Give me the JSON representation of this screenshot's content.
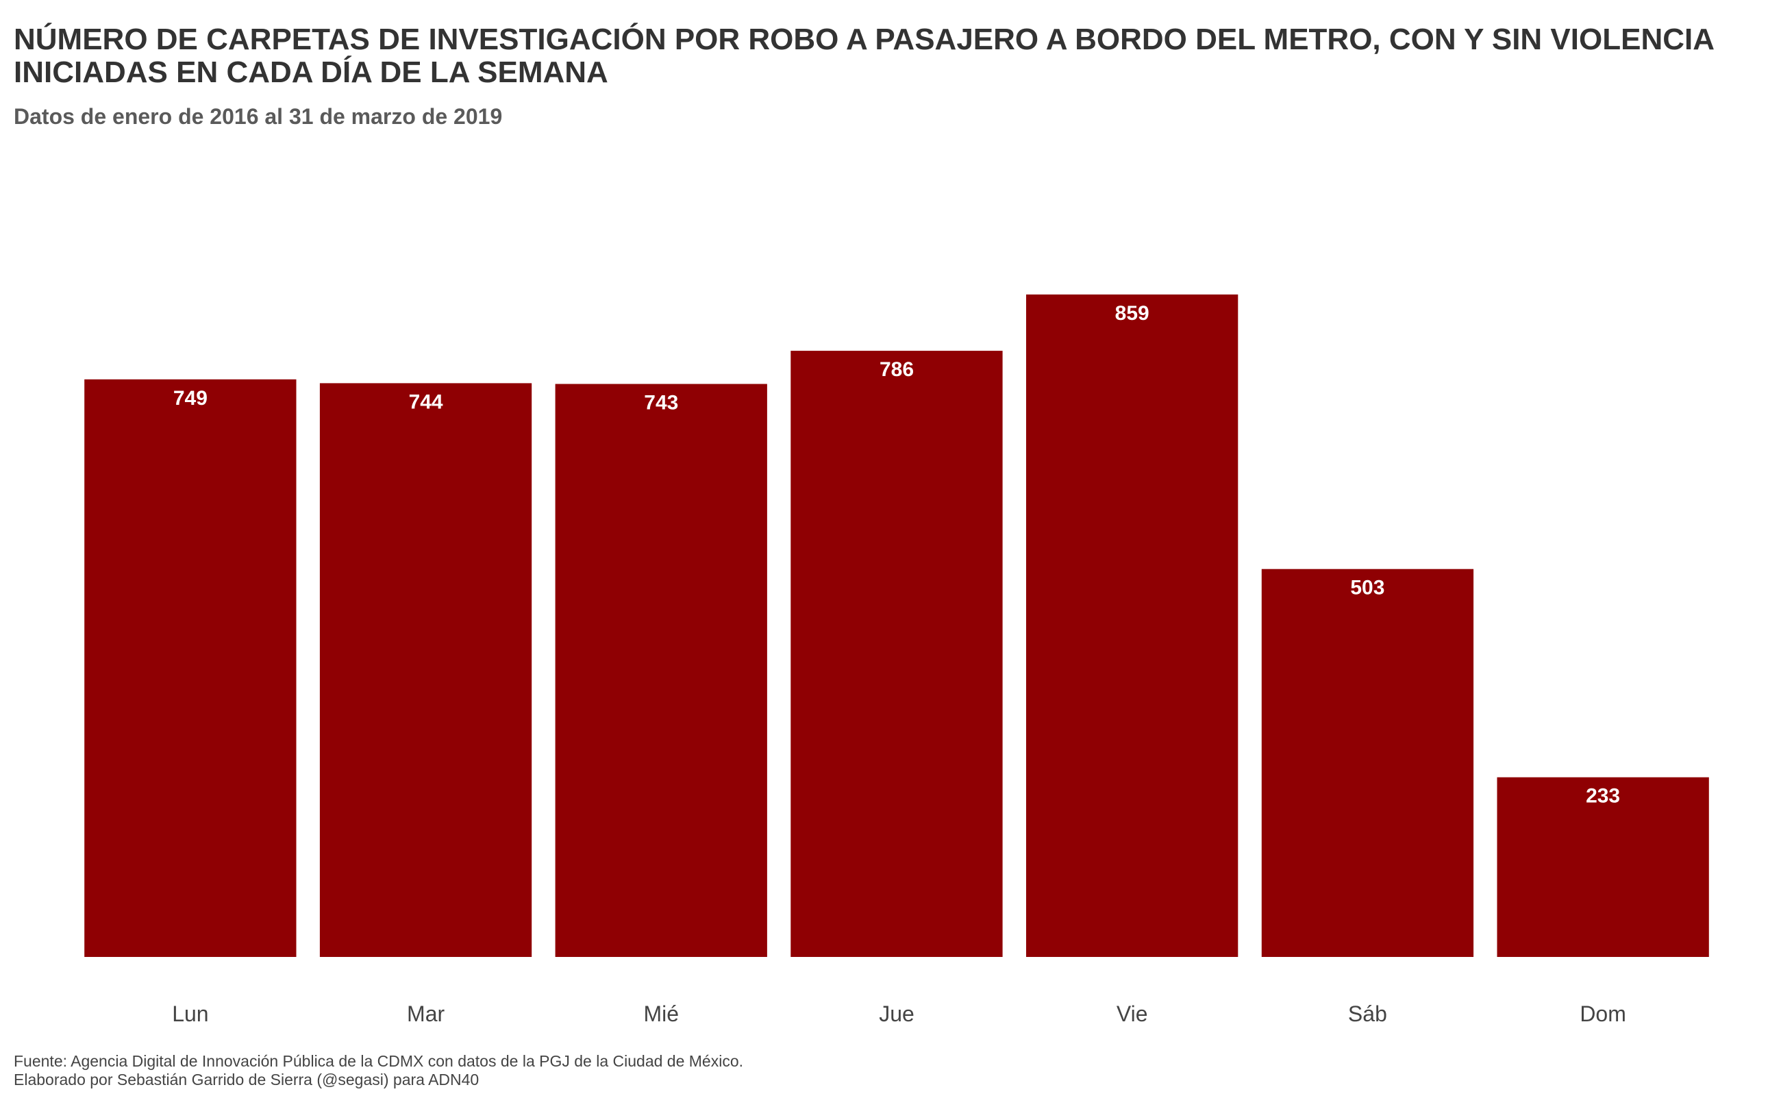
{
  "chart_data": {
    "type": "bar",
    "title": [
      "NÚMERO DE CARPETAS DE INVESTIGACIÓN POR ROBO A PASAJERO A BORDO DEL METRO, CON Y SIN VIOLENCIA",
      "INICIADAS EN CADA DÍA DE LA SEMANA"
    ],
    "subtitle": "Datos de enero de 2016 al 31 de marzo de 2019",
    "categories": [
      "Lun",
      "Mar",
      "Mié",
      "Jue",
      "Vie",
      "Sáb",
      "Dom"
    ],
    "values": [
      749,
      744,
      743,
      786,
      859,
      503,
      233
    ],
    "xlabel": "",
    "ylabel": "",
    "ylim": [
      0,
      900
    ],
    "grid": false,
    "legend": "none",
    "bar_color": "#8f0003",
    "label_color": "#ffffff",
    "caption": [
      "Fuente: Agencia Digital de Innovación Pública de la CDMX con datos de la PGJ de la Ciudad de México.",
      "Elaborado por Sebastián Garrido de Sierra (@segasi) para ADN40"
    ]
  }
}
